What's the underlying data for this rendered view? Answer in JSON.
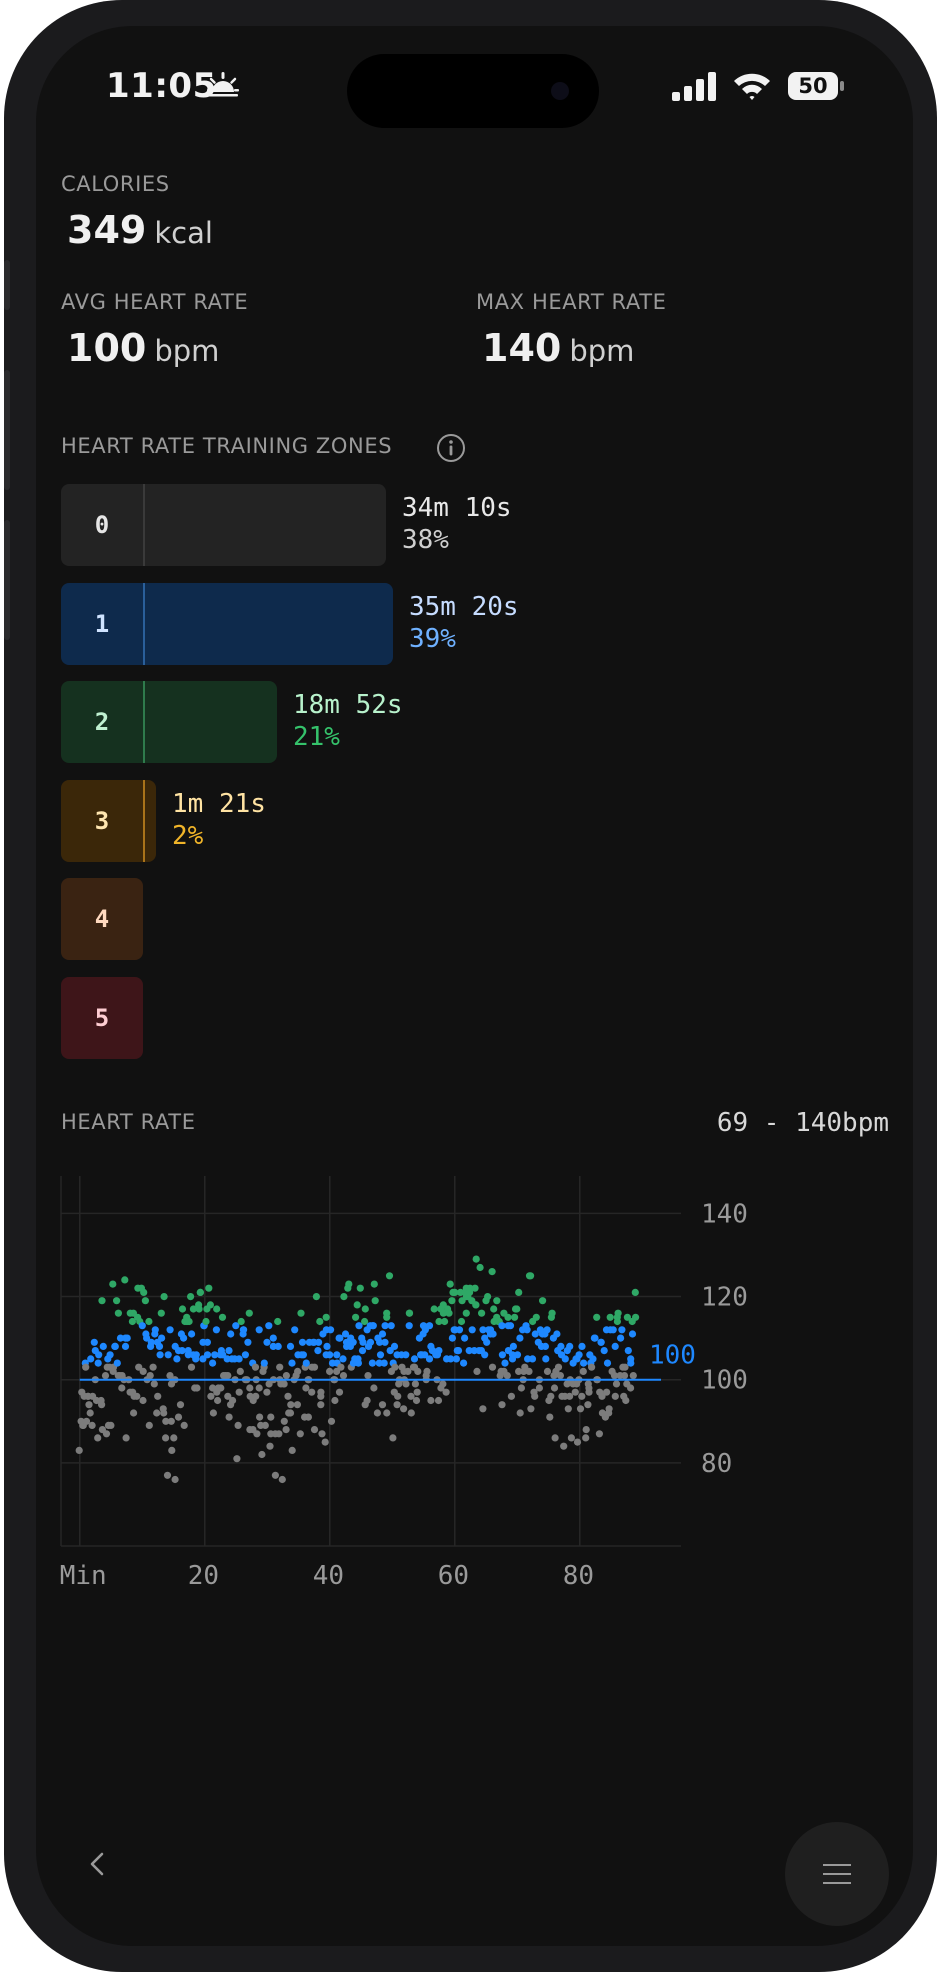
{
  "status_bar": {
    "time": "11:05",
    "battery": "50"
  },
  "calories": {
    "label": "CALORIES",
    "value": "349",
    "unit": "kcal"
  },
  "avg_heart_rate": {
    "label": "AVG HEART RATE",
    "value": "100",
    "unit": "bpm"
  },
  "max_heart_rate": {
    "label": "MAX HEART RATE",
    "value": "140",
    "unit": "bpm"
  },
  "zones_section": {
    "title": "HEART RATE TRAINING ZONES"
  },
  "zones": [
    {
      "zone": "0",
      "duration": "34m 10s",
      "percent": "38%",
      "fraction": 0.38,
      "fill": "#232323",
      "num_color": "#e6e6e6",
      "sep": "#3a3a3a",
      "time_color": "#e8e8e8",
      "pct_color": "#cfcfcf"
    },
    {
      "zone": "1",
      "duration": "35m 20s",
      "percent": "39%",
      "fraction": 0.39,
      "fill": "#0e2a4c",
      "num_color": "#cfe3ff",
      "sep": "#2a5f9a",
      "time_color": "#c6dcff",
      "pct_color": "#6fb1ff"
    },
    {
      "zone": "2",
      "duration": "18m 52s",
      "percent": "21%",
      "fraction": 0.21,
      "fill": "#15311f",
      "num_color": "#bff0d0",
      "sep": "#2f7b4c",
      "time_color": "#b8f2cc",
      "pct_color": "#35c26b"
    },
    {
      "zone": "3",
      "duration": "1m 21s",
      "percent": "2%",
      "fraction": 0.02,
      "fill": "#3b2709",
      "num_color": "#ffe6b0",
      "sep": "#a9731a",
      "time_color": "#ffe3a3",
      "pct_color": "#f0b429"
    },
    {
      "zone": "4",
      "duration": "",
      "percent": "",
      "fraction": 0,
      "fill": "#3a2312",
      "num_color": "#ffd9bf",
      "sep": "#3a2312",
      "time_color": "#ffd9bf",
      "pct_color": "#ffd9bf"
    },
    {
      "zone": "5",
      "duration": "",
      "percent": "",
      "fraction": 0,
      "fill": "#3e1519",
      "num_color": "#ffcdd2",
      "sep": "#3e1519",
      "time_color": "#ffcdd2",
      "pct_color": "#ffcdd2"
    }
  ],
  "heart_rate_section": {
    "title": "HEART RATE",
    "range": "69 - 140bpm"
  },
  "chart_data": {
    "type": "scatter",
    "xlabel": "",
    "ylabel": "",
    "x_ticks": [
      "Min",
      "20",
      "40",
      "60",
      "80"
    ],
    "x_tick_values": [
      0,
      20,
      40,
      60,
      80
    ],
    "y_ticks": [
      "140",
      "120",
      "100",
      "80"
    ],
    "y_tick_values": [
      140,
      120,
      100,
      80
    ],
    "xlim": [
      -3,
      93
    ],
    "ylim": [
      60,
      149
    ],
    "average": 100,
    "average_label": "100",
    "grid": true,
    "zone_colors": {
      "0": "#7c7c7c",
      "1": "#1e88ff",
      "2": "#2fa866",
      "3": "#f5b83a"
    },
    "zone_thresholds": [
      104,
      114,
      133
    ],
    "series_trend": [
      [
        0,
        88
      ],
      [
        3,
        100
      ],
      [
        6,
        104
      ],
      [
        9,
        108
      ],
      [
        12,
        103
      ],
      [
        15,
        96
      ],
      [
        18,
        112
      ],
      [
        21,
        106
      ],
      [
        24,
        100
      ],
      [
        27,
        103
      ],
      [
        30,
        99
      ],
      [
        33,
        95
      ],
      [
        36,
        104
      ],
      [
        39,
        101
      ],
      [
        42,
        106
      ],
      [
        45,
        110
      ],
      [
        48,
        108
      ],
      [
        51,
        104
      ],
      [
        54,
        106
      ],
      [
        57,
        103
      ],
      [
        60,
        112
      ],
      [
        63,
        116
      ],
      [
        66,
        110
      ],
      [
        69,
        108
      ],
      [
        72,
        110
      ],
      [
        75,
        104
      ],
      [
        78,
        102
      ],
      [
        81,
        100
      ],
      [
        84,
        98
      ],
      [
        87,
        104
      ],
      [
        89,
        110
      ]
    ],
    "spread": 16,
    "points_per_minute": 7,
    "seed": 7
  },
  "nav": {
    "back": "back",
    "menu": "menu"
  }
}
